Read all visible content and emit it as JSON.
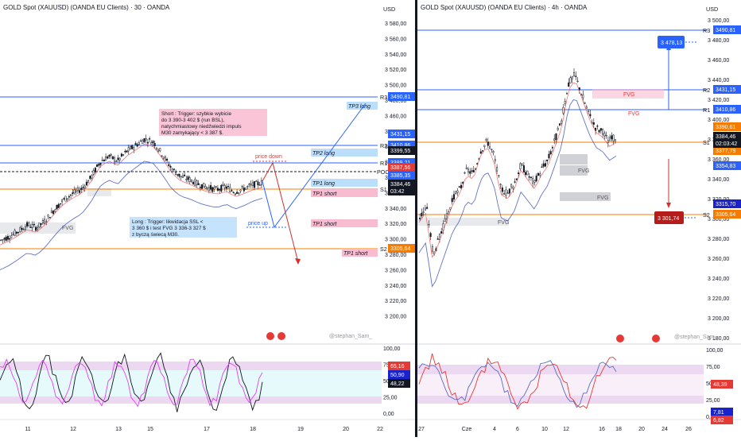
{
  "colors": {
    "up": "#26a69a",
    "down": "#ef5350",
    "candle": "#131722",
    "blue": "#2962ff",
    "orange": "#f57c00",
    "red": "#d32f2f",
    "rsi": "#7e57c2"
  },
  "left": {
    "title": "GOLD Spot (XAUUSD) (OANDA EU Clients) · 30 · OANDA",
    "currency": "USD",
    "y_ticks": [
      "3 580,00",
      "3 560,00",
      "3 540,00",
      "3 520,00",
      "3 500,00",
      "3 480,00",
      "3 460,00",
      "3 440,00",
      "3 420,00",
      "3 400,00",
      "3 380,00",
      "3 360,00",
      "3 340,00",
      "3 320,00",
      "3 300,00",
      "3 280,00",
      "3 260,00",
      "3 240,00",
      "3 220,00",
      "3 200,00"
    ],
    "x_ticks": [
      "11",
      "12",
      "13",
      "15",
      "17",
      "18",
      "19",
      "20",
      "22"
    ],
    "levels": [
      {
        "label": "R3",
        "tag": "3490,81",
        "color": "#2962ff"
      },
      {
        "label": "R2",
        "tag": "3410,86",
        "color": "#2962ff"
      },
      {
        "label": "R1",
        "tag": "3389,21",
        "color": "#2962ff"
      },
      {
        "label": "POC",
        "tag": "",
        "color": "#131722"
      },
      {
        "label": "S1",
        "tag": "3377,79",
        "color": "#f57c00"
      },
      {
        "label": "S2",
        "tag": "3305,64",
        "color": "#f57c00"
      }
    ],
    "price_tags": [
      {
        "text": "3431,15",
        "color": "#2962ff"
      },
      {
        "text": "3399,55",
        "color": "#131722"
      },
      {
        "text": "3387,56",
        "color": "#e53935"
      },
      {
        "text": "3385,35",
        "color": "#2962ff"
      },
      {
        "text": "3384,46",
        "color": "#ffffff"
      },
      {
        "text": "03:42",
        "color": "#ffffff"
      }
    ],
    "targets": {
      "tp3_long": "TP3 long",
      "tp2_long": "TP2 long",
      "tp1_long": "TP1 long",
      "tp1_short_a": "TP1 short",
      "tp1_short_b": "TP1 short",
      "tp1_short_c": "TP1 short"
    },
    "notes": {
      "short": "Short : Trigger: szybkie wybicie do 3 390-3 402 $ (run BSL), natychmiastowy niedźwiedzi impuls M30 zamykający < 3 387 $.",
      "long": "Long : Trigger: likwidacja SSL < 3 360 $ i test FVG 3 336-3 327 $ z byczą świecą M30."
    },
    "labels": {
      "price_down": "price down",
      "price_up": "price up",
      "fvg": "FVG"
    },
    "rsi": {
      "ticks": [
        "100,00",
        "75,00",
        "50,00",
        "25,00",
        "0,00"
      ],
      "tags": [
        "65,16",
        "50,90",
        "48,22"
      ]
    }
  },
  "right": {
    "title": "GOLD Spot (XAUUSD) (OANDA EU Clients) · 4h · OANDA",
    "currency": "USD",
    "y_ticks": [
      "3 500,00",
      "3 480,00",
      "3 460,00",
      "3 440,00",
      "3 420,00",
      "3 400,00",
      "3 380,00",
      "3 360,00",
      "3 340,00",
      "3 320,00",
      "3 300,00",
      "3 280,00",
      "3 260,00",
      "3 240,00",
      "3 220,00",
      "3 200,00",
      "3 180,00"
    ],
    "x_ticks": [
      "27",
      "Cze",
      "4",
      "6",
      "10",
      "12",
      "16",
      "18",
      "20",
      "24",
      "26"
    ],
    "levels": [
      {
        "label": "R3",
        "tag": "3490,81"
      },
      {
        "label": "R2",
        "tag": "3431,15"
      },
      {
        "label": "R1",
        "tag": "3410,86"
      },
      {
        "label": "S1",
        "tag": "3377,79"
      },
      {
        "label": "S2",
        "tag": "3305,64"
      }
    ],
    "price_tags": [
      {
        "text": "3390,61",
        "color": "#f57c00"
      },
      {
        "text": "3384,46",
        "color": "#131722"
      },
      {
        "text": "02:03:42",
        "color": "#131722"
      },
      {
        "text": "3354,83",
        "color": "#2962ff"
      },
      {
        "text": "3315,70",
        "color": "#1a23c9"
      }
    ],
    "callouts": {
      "up": "3 478,13",
      "down": "3 301,74"
    },
    "labels": {
      "fvg": "FVG"
    },
    "rsi": {
      "ticks": [
        "100,00",
        "75,00",
        "50,00",
        "25,00",
        "0,00"
      ],
      "tags": [
        "48,39",
        "7,81",
        "6,82"
      ]
    }
  },
  "watermark": "@stephan_Sam_",
  "chart_data": [
    {
      "type": "line",
      "title": "GOLD Spot (XAUUSD) (OANDA EU Clients) · 30 · OANDA",
      "ylim": [
        3190,
        3590
      ],
      "levels": {
        "R3": 3490.81,
        "R2": 3410.86,
        "R1": 3389.21,
        "S1": 3377.79,
        "S2": 3305.64
      },
      "last_price": 3384.46,
      "path": [
        3310,
        3315,
        3322,
        3330,
        3326,
        3336,
        3350,
        3362,
        3370,
        3376,
        3390,
        3410,
        3418,
        3412,
        3424,
        3432,
        3440,
        3436,
        3420,
        3402,
        3392,
        3388,
        3382,
        3378,
        3375,
        3379,
        3372,
        3376,
        3381,
        3384
      ],
      "projection": {
        "short_target": 3250,
        "long_target": 3480
      }
    },
    {
      "type": "line",
      "title": "GOLD Spot (XAUUSD) (OANDA EU Clients) · 4h · OANDA",
      "ylim": [
        3170,
        3510
      ],
      "levels": {
        "R3": 3490.81,
        "R2": 3431.15,
        "R1": 3410.86,
        "S1": 3377.79,
        "S2": 3305.64
      },
      "last_price": 3384.46,
      "path": [
        3300,
        3310,
        3260,
        3280,
        3300,
        3320,
        3330,
        3350,
        3345,
        3370,
        3380,
        3365,
        3330,
        3325,
        3335,
        3355,
        3345,
        3335,
        3350,
        3360,
        3380,
        3400,
        3440,
        3450,
        3430,
        3410,
        3395,
        3390,
        3380,
        3384
      ],
      "callouts": {
        "up": 3478.13,
        "down": 3301.74
      }
    }
  ]
}
